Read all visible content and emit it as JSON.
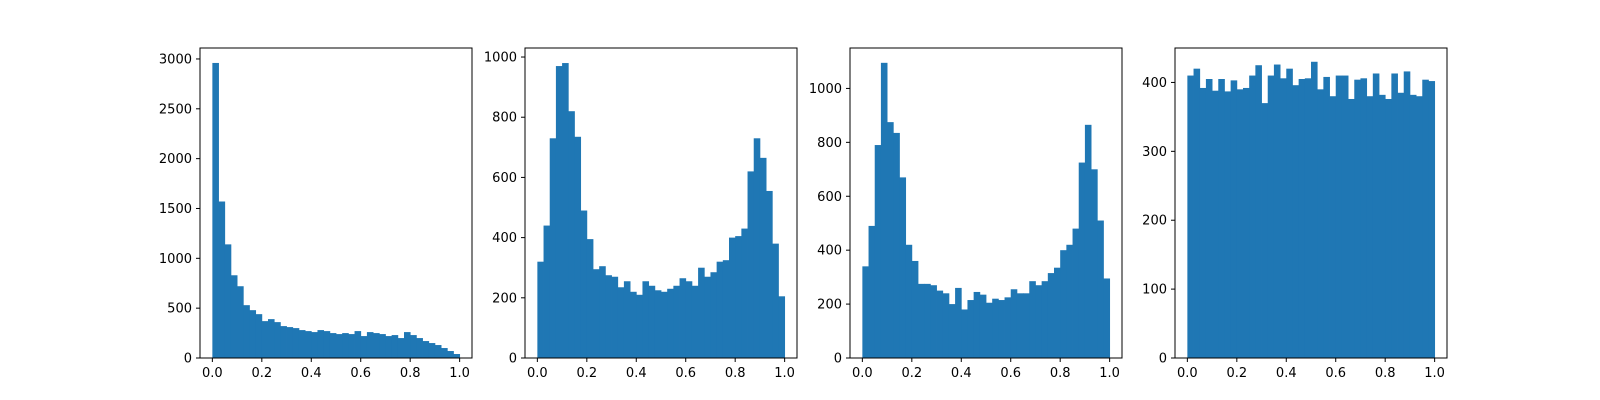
{
  "colors": {
    "bar": "#1f77b4",
    "frame": "#000000",
    "background": "#ffffff"
  },
  "chart_data": [
    {
      "type": "bar",
      "histogram": true,
      "bins": 40,
      "xlim": [
        -0.05,
        1.05
      ],
      "ylim": [
        0,
        3110
      ],
      "xticks": [
        "0.0",
        "0.2",
        "0.4",
        "0.6",
        "0.8",
        "1.0"
      ],
      "yticks": [
        "0",
        "500",
        "1000",
        "1500",
        "2000",
        "2500",
        "3000"
      ],
      "values": [
        2960,
        1570,
        1140,
        830,
        720,
        530,
        480,
        440,
        370,
        390,
        360,
        320,
        310,
        300,
        280,
        270,
        260,
        280,
        270,
        250,
        240,
        250,
        240,
        270,
        220,
        260,
        250,
        240,
        220,
        230,
        200,
        260,
        230,
        200,
        170,
        150,
        130,
        100,
        70,
        40
      ]
    },
    {
      "type": "bar",
      "histogram": true,
      "bins": 40,
      "xlim": [
        -0.05,
        1.05
      ],
      "ylim": [
        0,
        1030
      ],
      "xticks": [
        "0.0",
        "0.2",
        "0.4",
        "0.6",
        "0.8",
        "1.0"
      ],
      "yticks": [
        "0",
        "200",
        "400",
        "600",
        "800",
        "1000"
      ],
      "values": [
        320,
        440,
        730,
        970,
        980,
        820,
        735,
        490,
        395,
        295,
        305,
        275,
        270,
        235,
        255,
        220,
        210,
        255,
        240,
        225,
        220,
        230,
        240,
        265,
        255,
        240,
        300,
        270,
        285,
        320,
        325,
        400,
        405,
        430,
        620,
        730,
        665,
        555,
        380,
        205
      ]
    },
    {
      "type": "bar",
      "histogram": true,
      "bins": 40,
      "xlim": [
        -0.05,
        1.05
      ],
      "ylim": [
        0,
        1150
      ],
      "xticks": [
        "0.0",
        "0.2",
        "0.4",
        "0.6",
        "0.8",
        "1.0"
      ],
      "yticks": [
        "0",
        "200",
        "400",
        "600",
        "800",
        "1000"
      ],
      "values": [
        340,
        490,
        790,
        1095,
        875,
        835,
        670,
        420,
        360,
        275,
        275,
        270,
        250,
        240,
        200,
        260,
        180,
        215,
        245,
        235,
        205,
        220,
        215,
        225,
        255,
        240,
        240,
        285,
        270,
        285,
        315,
        335,
        400,
        420,
        480,
        725,
        865,
        700,
        510,
        295
      ]
    },
    {
      "type": "bar",
      "histogram": true,
      "bins": 40,
      "xlim": [
        -0.05,
        1.05
      ],
      "ylim": [
        0,
        450
      ],
      "xticks": [
        "0.0",
        "0.2",
        "0.4",
        "0.6",
        "0.8",
        "1.0"
      ],
      "yticks": [
        "0",
        "100",
        "200",
        "300",
        "400"
      ],
      "values": [
        410,
        420,
        392,
        405,
        388,
        405,
        387,
        403,
        390,
        392,
        410,
        425,
        370,
        410,
        426,
        406,
        420,
        396,
        405,
        406,
        430,
        390,
        408,
        380,
        410,
        410,
        376,
        404,
        406,
        380,
        413,
        382,
        376,
        413,
        385,
        416,
        382,
        380,
        404,
        402
      ]
    }
  ]
}
